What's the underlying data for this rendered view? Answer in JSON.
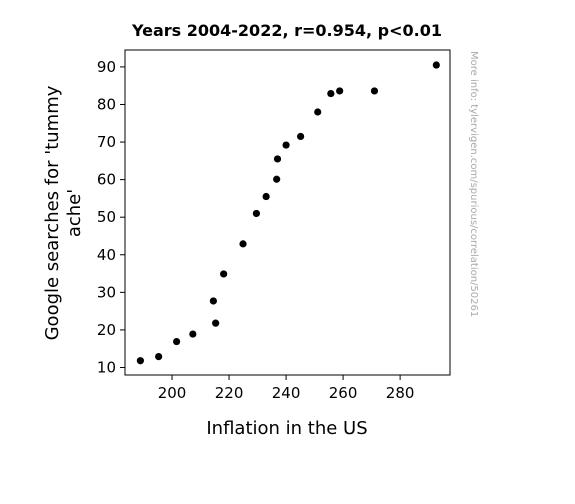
{
  "chart_data": {
    "type": "scatter",
    "title": "Years 2004-2022, r=0.954, p<0.01",
    "xlabel": "Inflation in the US",
    "ylabel_lines": [
      "Google searches for 'tummy",
      "ache'"
    ],
    "xlim": [
      183.5,
      297.5
    ],
    "ylim": [
      8,
      94.5
    ],
    "xticks": [
      200,
      220,
      240,
      260,
      280
    ],
    "yticks": [
      10,
      20,
      30,
      40,
      50,
      60,
      70,
      80,
      90
    ],
    "grid": false,
    "marker_color": "#000000",
    "points": [
      {
        "x": 188.9,
        "y": 11.8
      },
      {
        "x": 195.3,
        "y": 12.9
      },
      {
        "x": 201.6,
        "y": 16.9
      },
      {
        "x": 207.3,
        "y": 18.9
      },
      {
        "x": 215.3,
        "y": 21.8
      },
      {
        "x": 214.5,
        "y": 27.7
      },
      {
        "x": 218.1,
        "y": 34.9
      },
      {
        "x": 224.9,
        "y": 42.9
      },
      {
        "x": 229.6,
        "y": 51.0
      },
      {
        "x": 233.0,
        "y": 55.5
      },
      {
        "x": 236.7,
        "y": 60.1
      },
      {
        "x": 237.0,
        "y": 65.5
      },
      {
        "x": 240.0,
        "y": 69.2
      },
      {
        "x": 245.1,
        "y": 71.5
      },
      {
        "x": 251.1,
        "y": 78.0
      },
      {
        "x": 255.7,
        "y": 82.9
      },
      {
        "x": 258.8,
        "y": 83.6
      },
      {
        "x": 271.0,
        "y": 83.6
      },
      {
        "x": 292.7,
        "y": 90.5
      }
    ]
  },
  "watermark": "More info: tylervigen.com/spurious/correlation/50261"
}
